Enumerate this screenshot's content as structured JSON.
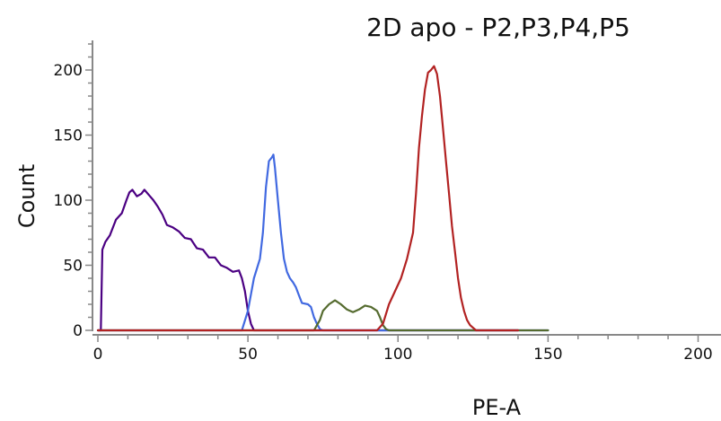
{
  "chart_data": {
    "type": "line",
    "title": "2D apo - P2,P3,P4,P5",
    "xlabel": "PE-A",
    "ylabel": "Count",
    "xlim": [
      0,
      210
    ],
    "ylim": [
      0,
      220
    ],
    "xticks": [
      0,
      50,
      100,
      150,
      200
    ],
    "yticks": [
      0,
      50,
      100,
      150,
      200
    ],
    "grid": false,
    "legend": "none",
    "series": [
      {
        "color": "#4B0082",
        "points": [
          [
            0,
            0
          ],
          [
            1,
            0
          ],
          [
            1.5,
            62
          ],
          [
            2.5,
            68
          ],
          [
            4,
            73
          ],
          [
            6,
            85
          ],
          [
            8,
            90
          ],
          [
            9.5,
            100
          ],
          [
            10.5,
            106
          ],
          [
            11.5,
            108
          ],
          [
            13,
            103
          ],
          [
            14.5,
            105
          ],
          [
            15.5,
            108
          ],
          [
            17,
            104
          ],
          [
            18.5,
            100
          ],
          [
            20,
            95
          ],
          [
            21.5,
            89
          ],
          [
            23,
            81
          ],
          [
            25,
            79
          ],
          [
            27,
            76
          ],
          [
            29,
            71
          ],
          [
            31,
            70
          ],
          [
            33,
            63
          ],
          [
            35,
            62
          ],
          [
            37,
            56
          ],
          [
            39,
            56
          ],
          [
            41,
            50
          ],
          [
            43,
            48
          ],
          [
            45,
            45
          ],
          [
            47,
            46
          ],
          [
            48,
            40
          ],
          [
            49,
            30
          ],
          [
            50,
            15
          ],
          [
            51,
            5
          ],
          [
            52,
            0
          ],
          [
            55,
            0
          ],
          [
            70,
            0
          ],
          [
            80,
            0
          ],
          [
            100,
            0
          ],
          [
            140,
            0
          ],
          [
            210,
            0
          ]
        ]
      },
      {
        "color": "#4169E1",
        "points": [
          [
            0,
            0
          ],
          [
            45,
            0
          ],
          [
            48,
            0
          ],
          [
            50,
            15
          ],
          [
            52,
            40
          ],
          [
            54,
            55
          ],
          [
            55,
            75
          ],
          [
            56,
            110
          ],
          [
            57,
            130
          ],
          [
            58,
            133
          ],
          [
            58.5,
            135
          ],
          [
            59,
            125
          ],
          [
            60,
            100
          ],
          [
            61,
            75
          ],
          [
            62,
            55
          ],
          [
            63,
            45
          ],
          [
            64,
            40
          ],
          [
            65,
            37
          ],
          [
            66,
            33
          ],
          [
            67,
            27
          ],
          [
            68,
            21
          ],
          [
            70,
            20
          ],
          [
            71,
            18
          ],
          [
            72,
            10
          ],
          [
            73,
            5
          ],
          [
            74,
            1
          ],
          [
            75,
            0
          ],
          [
            100,
            0
          ],
          [
            150,
            0
          ],
          [
            210,
            0
          ]
        ]
      },
      {
        "color": "#556B2F",
        "points": [
          [
            0,
            0
          ],
          [
            70,
            0
          ],
          [
            72,
            0
          ],
          [
            74,
            8
          ],
          [
            75,
            15
          ],
          [
            77,
            20
          ],
          [
            79,
            23
          ],
          [
            81,
            20
          ],
          [
            83,
            16
          ],
          [
            85,
            14
          ],
          [
            87,
            16
          ],
          [
            89,
            19
          ],
          [
            91,
            18
          ],
          [
            93,
            15
          ],
          [
            94,
            10
          ],
          [
            95,
            4
          ],
          [
            96,
            1
          ],
          [
            97,
            0
          ],
          [
            150,
            0
          ],
          [
            210,
            0
          ]
        ]
      },
      {
        "color": "#B22222",
        "points": [
          [
            0,
            0
          ],
          [
            90,
            0
          ],
          [
            93,
            0
          ],
          [
            95,
            5
          ],
          [
            97,
            20
          ],
          [
            99,
            30
          ],
          [
            101,
            40
          ],
          [
            103,
            55
          ],
          [
            105,
            75
          ],
          [
            106,
            105
          ],
          [
            107,
            140
          ],
          [
            108,
            165
          ],
          [
            109,
            185
          ],
          [
            110,
            198
          ],
          [
            111,
            200
          ],
          [
            112,
            203
          ],
          [
            113,
            197
          ],
          [
            114,
            180
          ],
          [
            115,
            155
          ],
          [
            116,
            130
          ],
          [
            117,
            105
          ],
          [
            118,
            80
          ],
          [
            119,
            60
          ],
          [
            120,
            40
          ],
          [
            121,
            25
          ],
          [
            122,
            15
          ],
          [
            123,
            8
          ],
          [
            124,
            4
          ],
          [
            125,
            2
          ],
          [
            126,
            0
          ],
          [
            140,
            0
          ],
          [
            210,
            0
          ]
        ]
      }
    ]
  }
}
